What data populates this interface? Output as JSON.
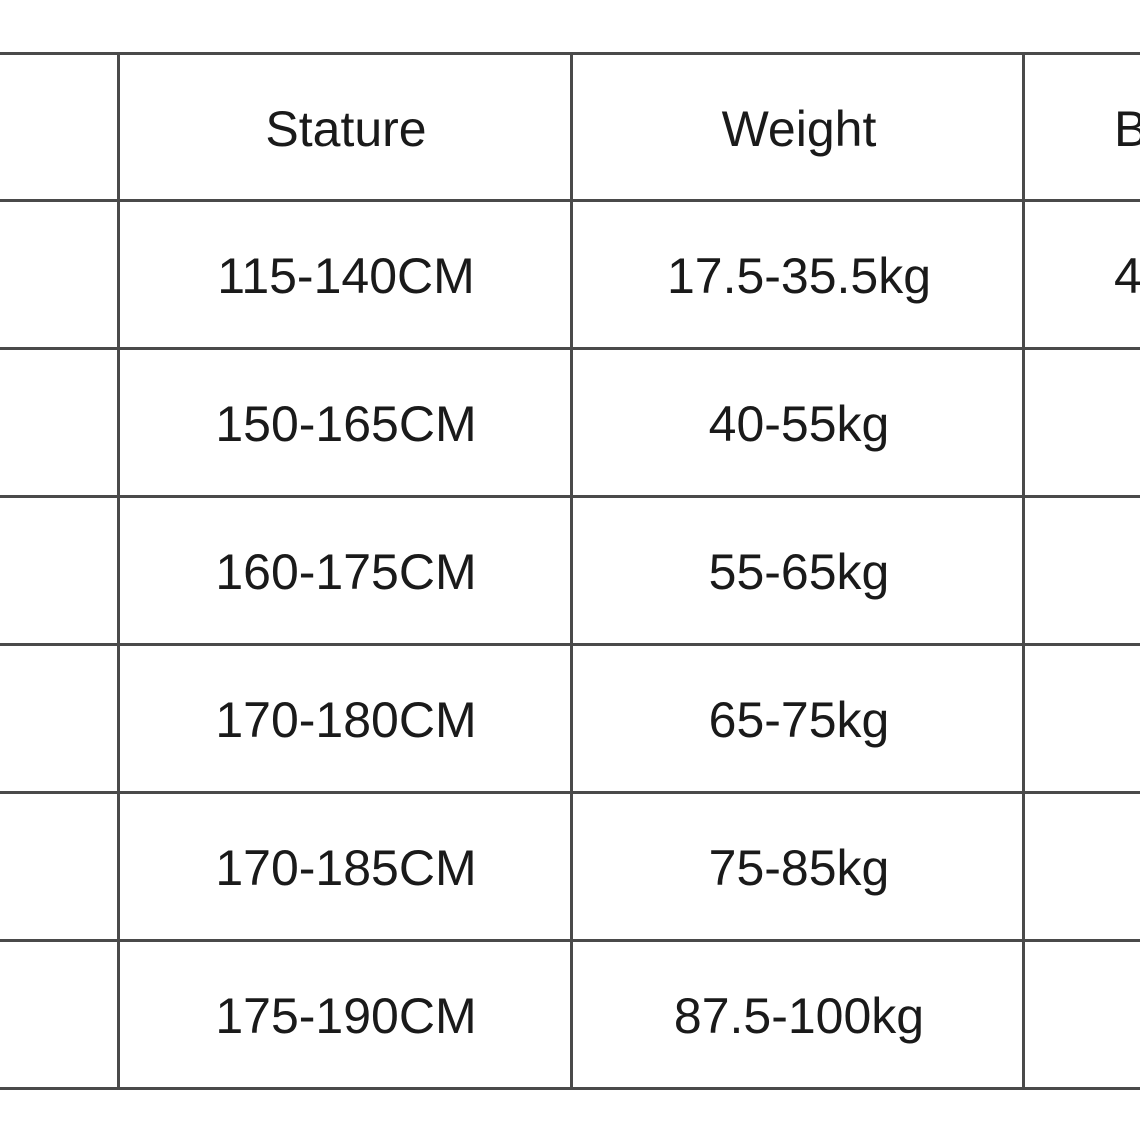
{
  "table": {
    "headers": [
      "Stature",
      "Weight",
      "B"
    ],
    "rows": [
      [
        "115-140CM",
        "17.5-35.5kg",
        "4"
      ],
      [
        "150-165CM",
        "40-55kg",
        ""
      ],
      [
        "160-175CM",
        "55-65kg",
        ""
      ],
      [
        "170-180CM",
        "65-75kg",
        ""
      ],
      [
        "170-185CM",
        "75-85kg",
        ""
      ],
      [
        "175-190CM",
        "87.5-100kg",
        ""
      ]
    ]
  }
}
